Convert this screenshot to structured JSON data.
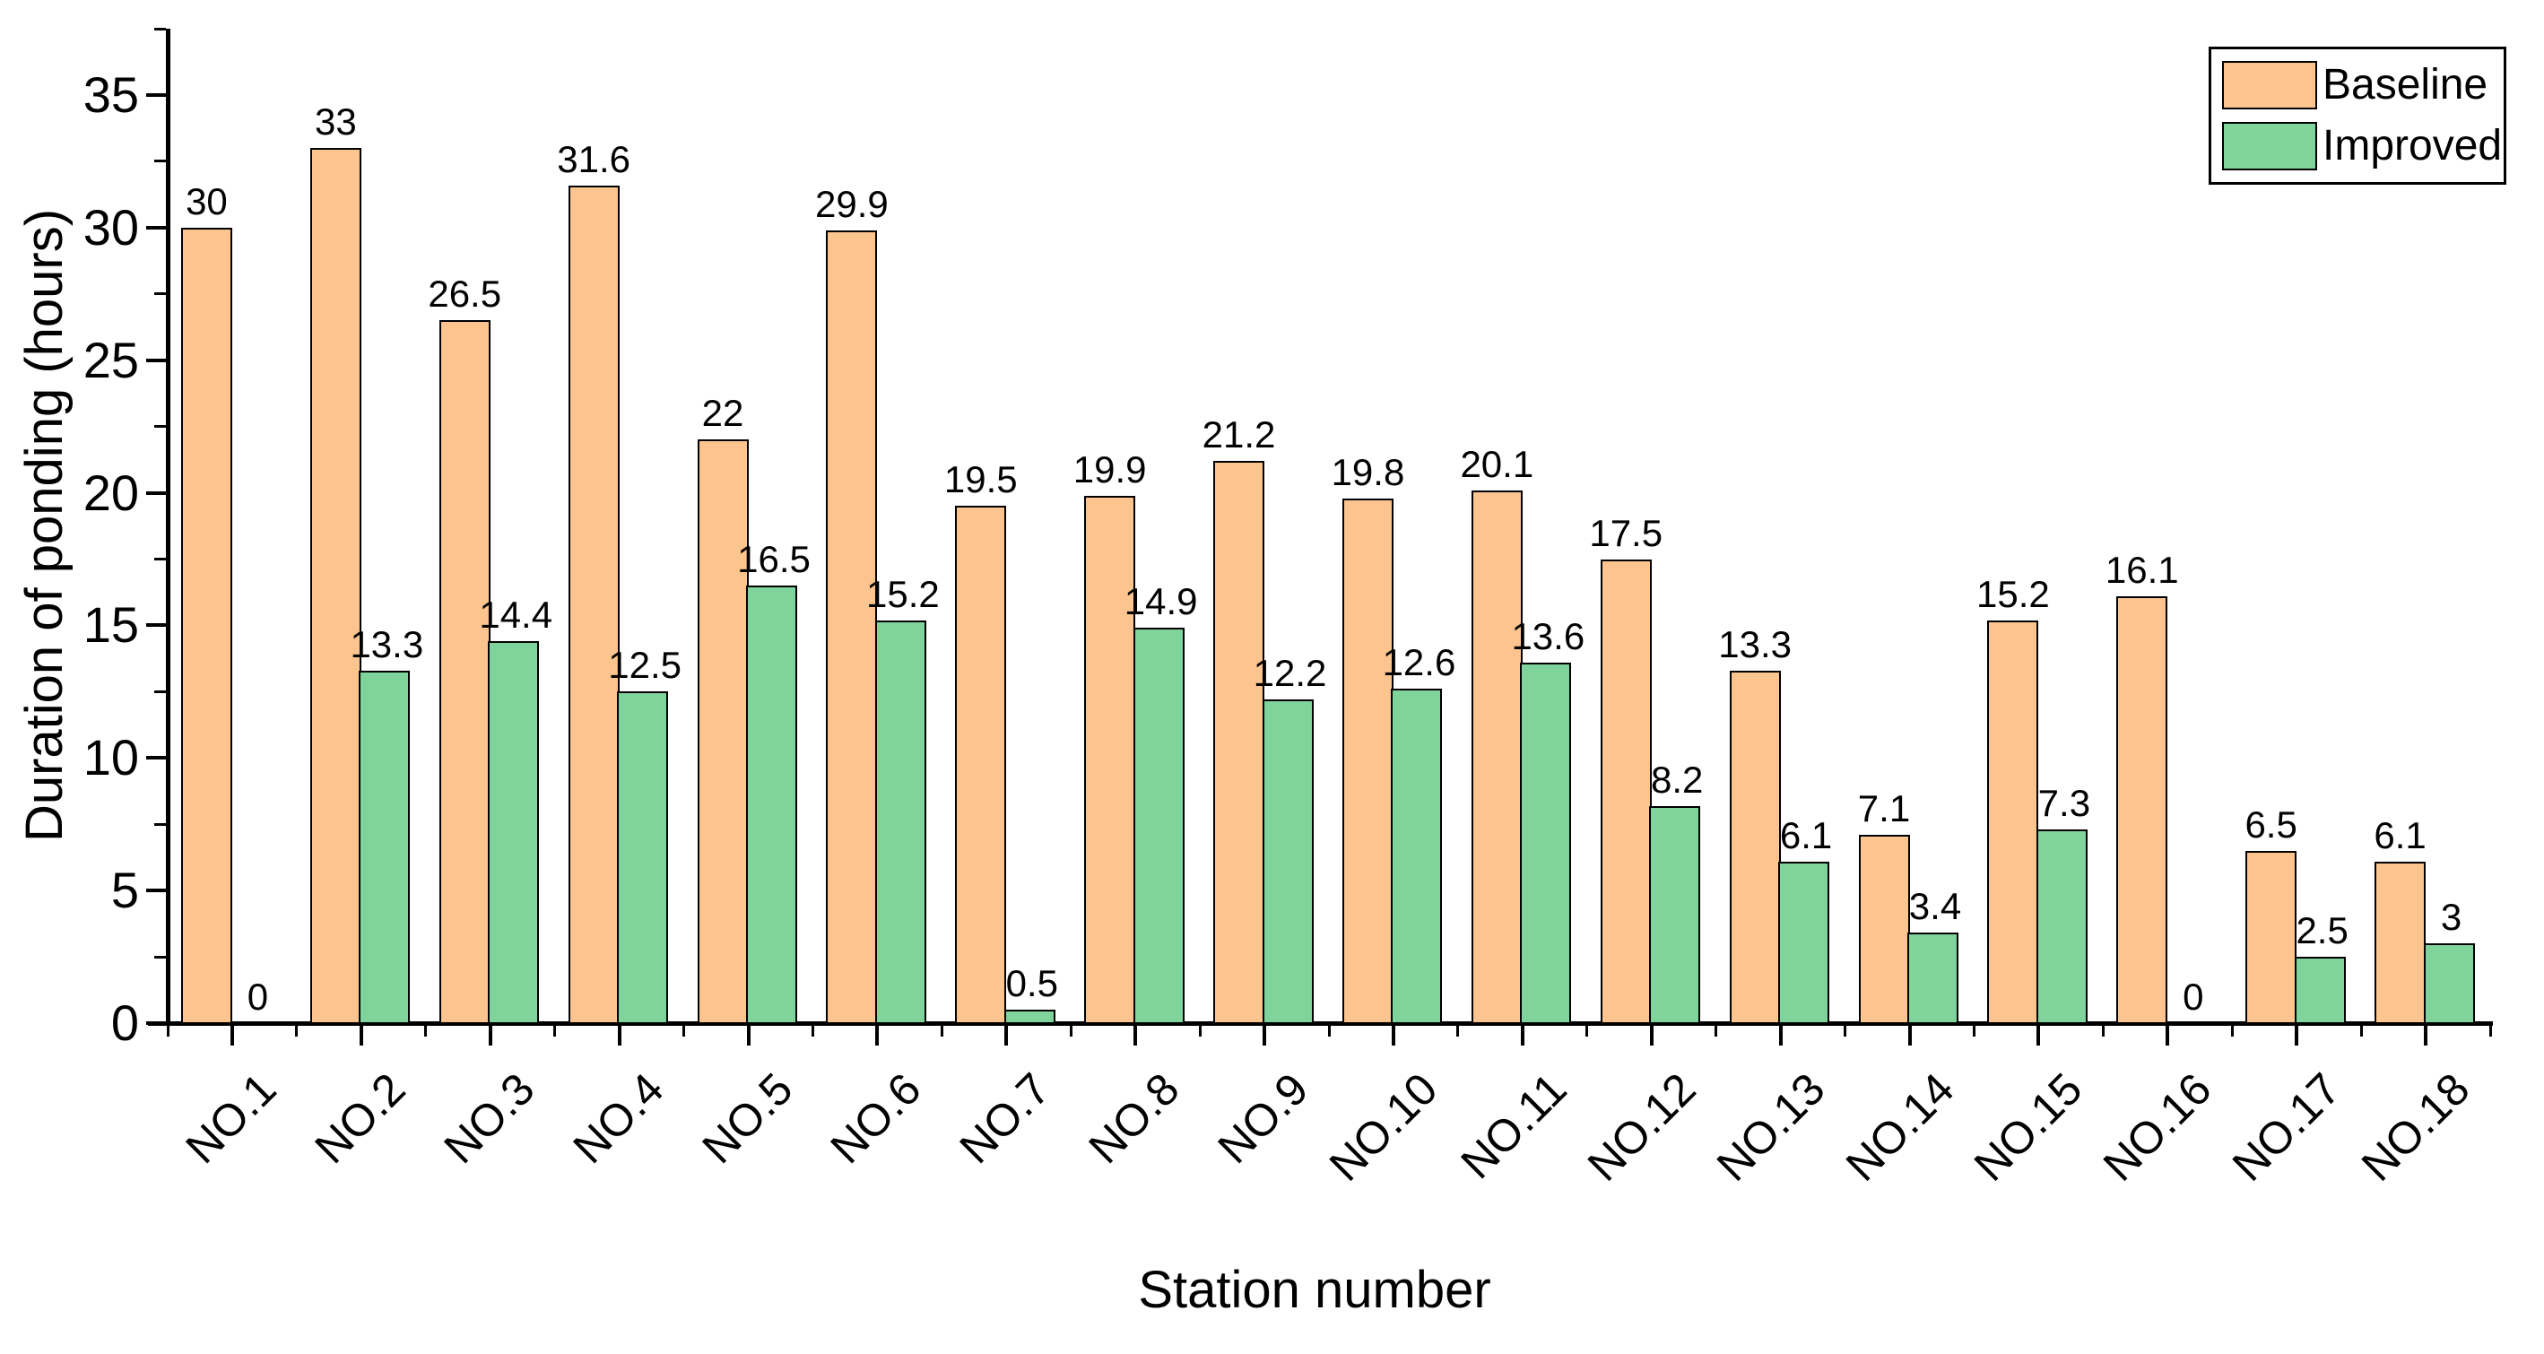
{
  "chart_data": {
    "type": "bar",
    "title": "",
    "xlabel": "Station number",
    "ylabel": "Duration of ponding (hours)",
    "categories": [
      "NO.1",
      "NO.2",
      "NO.3",
      "NO.4",
      "NO.5",
      "NO.6",
      "NO.7",
      "NO.8",
      "NO.9",
      "NO.10",
      "NO.11",
      "NO.12",
      "NO.13",
      "NO.14",
      "NO.15",
      "NO.16",
      "NO.17",
      "NO.18"
    ],
    "series": [
      {
        "name": "Baseline",
        "color": "#FCC48E",
        "values": [
          30,
          33,
          26.5,
          31.6,
          22,
          29.9,
          19.5,
          19.9,
          21.2,
          19.8,
          20.1,
          17.5,
          13.3,
          7.1,
          15.2,
          16.1,
          6.5,
          6.1
        ]
      },
      {
        "name": "Improved",
        "color": "#7ED49A",
        "values": [
          0,
          13.3,
          14.4,
          12.5,
          16.5,
          15.2,
          0.5,
          14.9,
          12.2,
          12.6,
          13.6,
          8.2,
          6.1,
          3.4,
          7.3,
          0,
          2.5,
          3
        ]
      }
    ],
    "bar_edge_color": "#000000",
    "value_labels_shown": true,
    "ylim": [
      0,
      37.5
    ],
    "yticks": [
      0,
      5,
      10,
      15,
      20,
      25,
      30,
      35
    ],
    "y_minor_step": 2.5,
    "grid": false,
    "legend_position": "top-right"
  }
}
